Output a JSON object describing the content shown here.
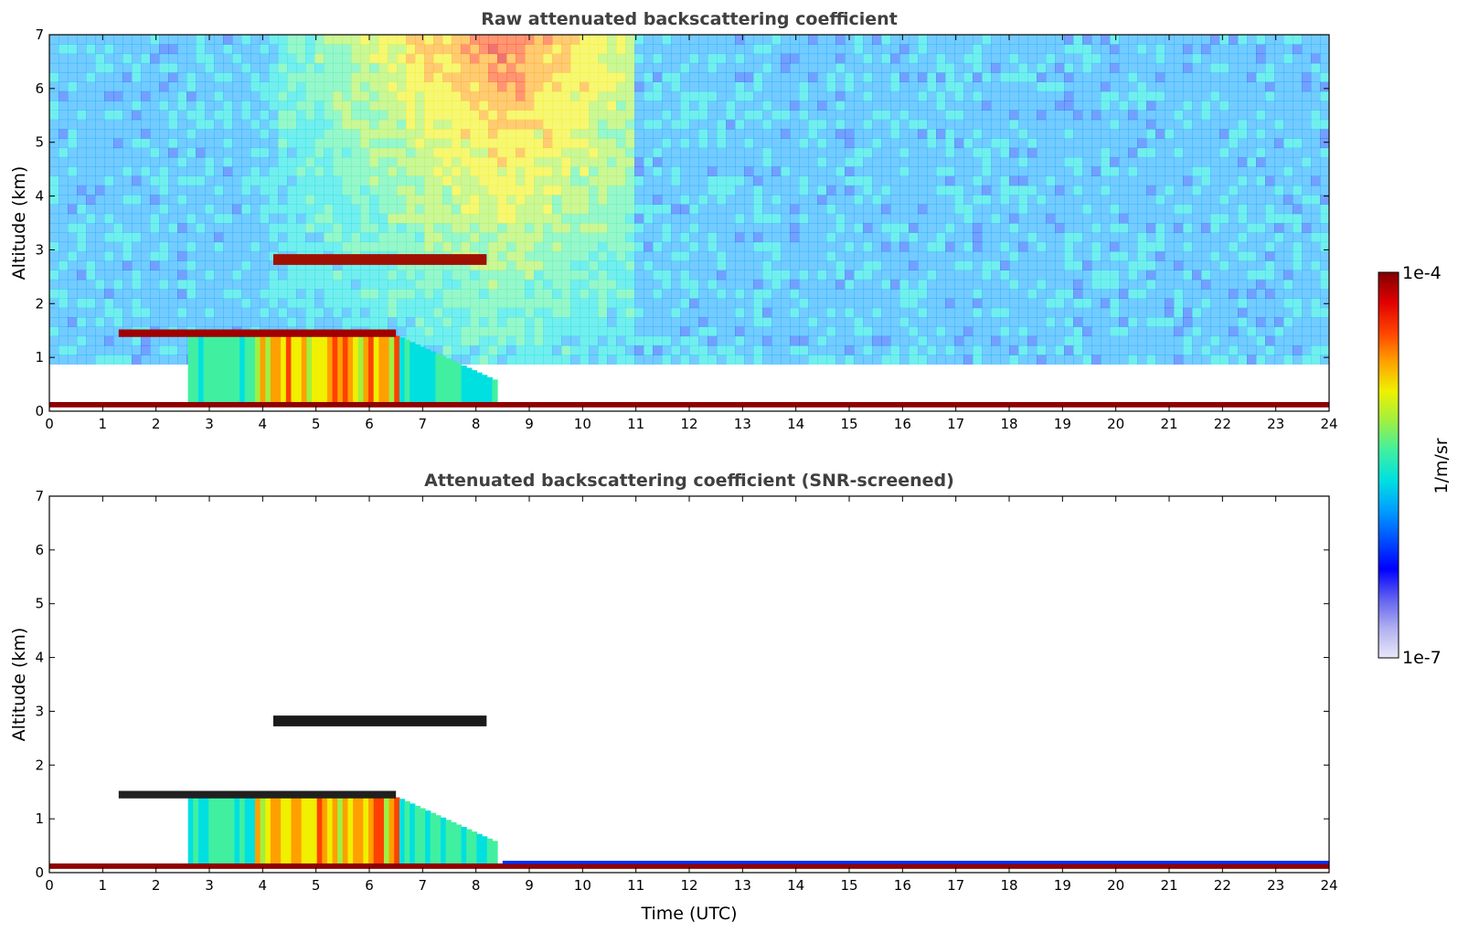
{
  "chart_data": [
    {
      "type": "heatmap",
      "title": "Raw attenuated backscattering coefficient",
      "xlabel": "",
      "ylabel": "Altitude (km)",
      "xlim": [
        0,
        24
      ],
      "ylim": [
        0,
        7
      ],
      "xticks": [
        "0",
        "1",
        "2",
        "3",
        "4",
        "5",
        "6",
        "7",
        "8",
        "9",
        "10",
        "11",
        "12",
        "13",
        "14",
        "15",
        "16",
        "17",
        "18",
        "19",
        "20",
        "21",
        "22",
        "23",
        "24"
      ],
      "yticks": [
        "0",
        "1",
        "2",
        "3",
        "4",
        "5",
        "6",
        "7"
      ],
      "features": {
        "surface_layer_altitude_km": 0.1,
        "upper_cloud_layer": {
          "start_utc": 4.2,
          "end_utc": 8.2,
          "altitude_km": 2.8
        },
        "mid_cloud_layer": {
          "start_utc": 1.3,
          "end_utc": 6.5,
          "altitude_km": 1.45
        },
        "boundary_layer_aerosol": {
          "start_utc": 2.6,
          "end_utc": 8.4,
          "top_km": 1.4
        },
        "high_background_noise": {
          "start_utc": 3.0,
          "end_utc": 11.0
        }
      }
    },
    {
      "type": "heatmap",
      "title": "Attenuated backscattering coefficient (SNR-screened)",
      "xlabel": "Time (UTC)",
      "ylabel": "Altitude (km)",
      "xlim": [
        0,
        24
      ],
      "ylim": [
        0,
        7
      ],
      "xticks": [
        "0",
        "1",
        "2",
        "3",
        "4",
        "5",
        "6",
        "7",
        "8",
        "9",
        "10",
        "11",
        "12",
        "13",
        "14",
        "15",
        "16",
        "17",
        "18",
        "19",
        "20",
        "21",
        "22",
        "23",
        "24"
      ],
      "yticks": [
        "0",
        "1",
        "2",
        "3",
        "4",
        "5",
        "6",
        "7"
      ],
      "features": {
        "surface_layer_altitude_km": 0.1,
        "upper_cloud_layer": {
          "start_utc": 4.2,
          "end_utc": 8.2,
          "altitude_km": 2.8
        },
        "mid_cloud_layer": {
          "start_utc": 1.3,
          "end_utc": 6.5,
          "altitude_km": 1.45
        },
        "boundary_layer_aerosol": {
          "start_utc": 2.6,
          "end_utc": 8.4,
          "top_km": 1.4
        }
      }
    }
  ],
  "colorbar": {
    "label": "1/m/sr",
    "max_label": "1e-4",
    "min_label": "1e-7",
    "scale": "log",
    "colors": [
      "#e8e8f8",
      "#b0b0f0",
      "#6060f0",
      "#0000ff",
      "#0050ff",
      "#00a0ff",
      "#00e0e0",
      "#40f0a0",
      "#a0f040",
      "#f0f000",
      "#ffa000",
      "#ff4000",
      "#e00000",
      "#800000"
    ]
  }
}
